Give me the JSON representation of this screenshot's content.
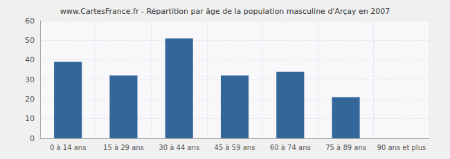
{
  "chart_data": {
    "type": "bar",
    "title": "www.CartesFrance.fr - Répartition par âge de la population masculine d'Arçay en 2007",
    "categories": [
      "0 à 14 ans",
      "15 à 29 ans",
      "30 à 44 ans",
      "45 à 59 ans",
      "60 à 74 ans",
      "75 à 89 ans",
      "90 ans et plus"
    ],
    "values": [
      39,
      32,
      51,
      32,
      34,
      21,
      0
    ],
    "color": "#336699",
    "ylim": [
      0,
      60
    ],
    "yticks": [
      0,
      10,
      20,
      30,
      40,
      50,
      60
    ],
    "grid": true
  }
}
